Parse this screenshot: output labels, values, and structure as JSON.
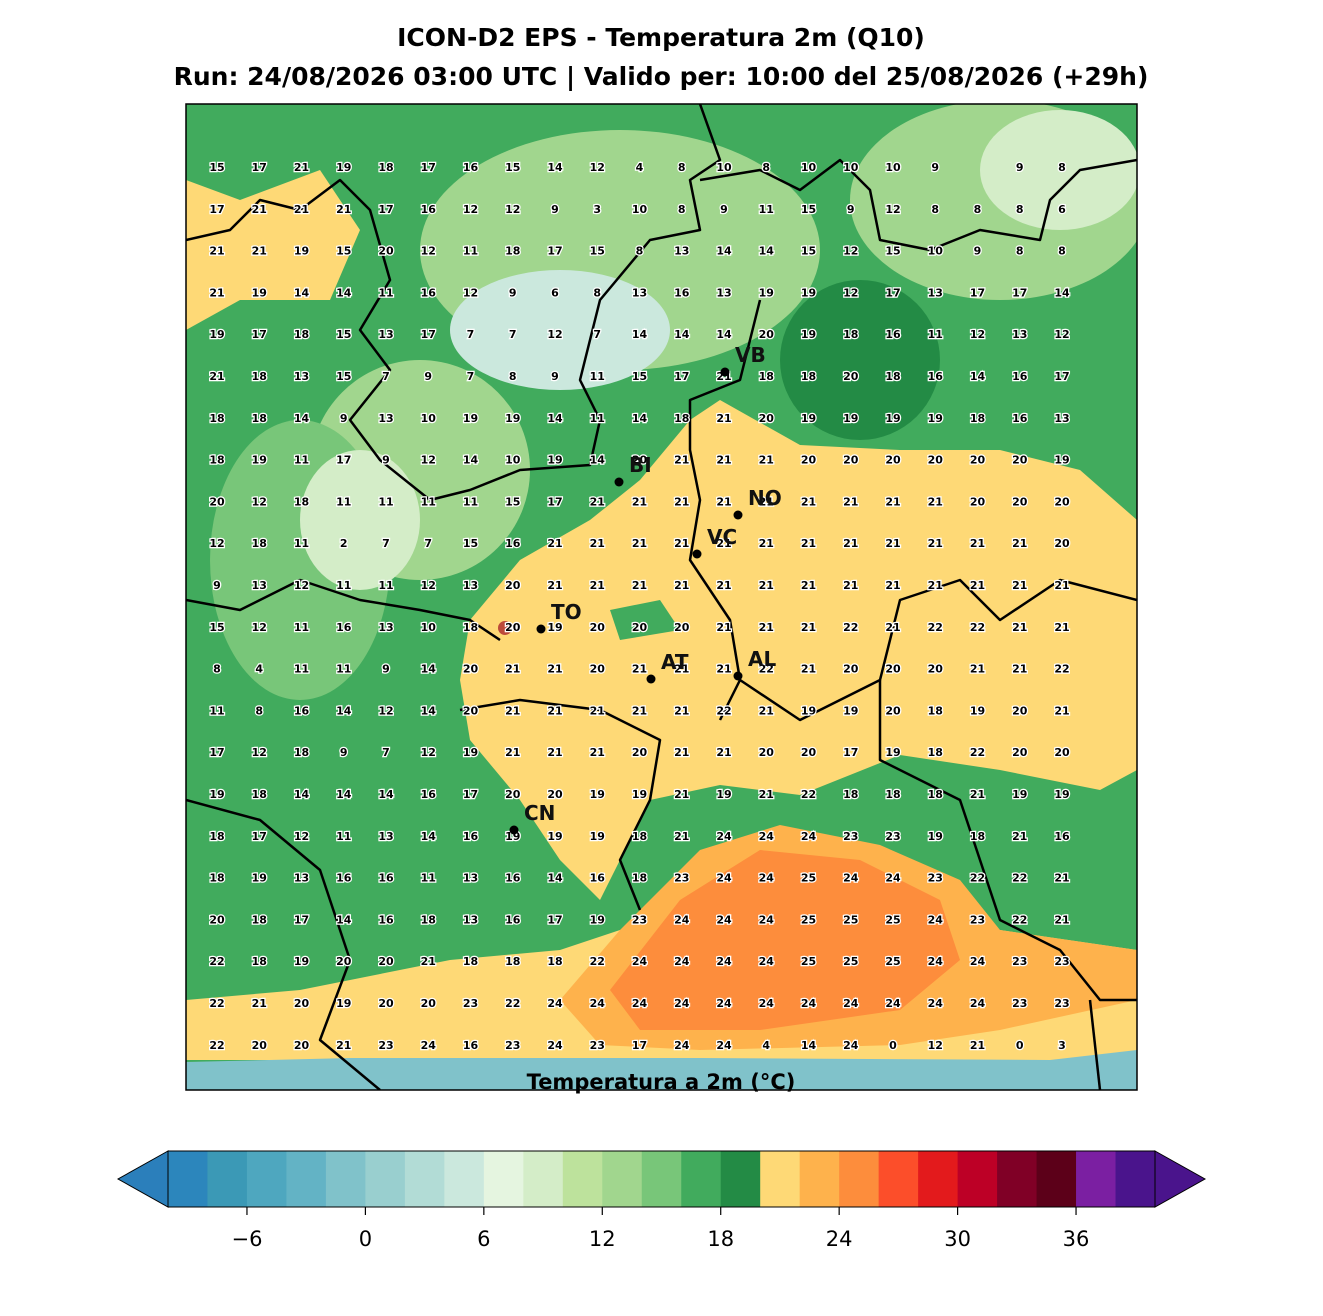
{
  "title": "ICON-D2 EPS - Temperatura 2m (Q10)",
  "subtitle": "Run: 24/08/2026 03:00 UTC | Valido per: 10:00 del 25/08/2026 (+29h)",
  "grid": {
    "rows": [
      [
        15,
        17,
        21,
        19,
        18,
        17,
        16,
        15,
        14,
        12,
        4,
        8,
        10,
        8,
        10,
        10,
        10,
        9,
        null,
        9,
        8
      ],
      [
        17,
        21,
        21,
        21,
        17,
        16,
        12,
        12,
        9,
        3,
        10,
        8,
        9,
        11,
        15,
        9,
        12,
        8,
        8,
        8,
        6
      ],
      [
        21,
        21,
        19,
        15,
        20,
        12,
        11,
        18,
        17,
        15,
        8,
        13,
        14,
        14,
        15,
        12,
        15,
        10,
        9,
        8,
        8
      ],
      [
        21,
        19,
        14,
        14,
        11,
        16,
        12,
        9,
        6,
        8,
        13,
        16,
        13,
        19,
        19,
        12,
        17,
        13,
        17,
        17,
        14
      ],
      [
        19,
        17,
        18,
        15,
        13,
        17,
        7,
        7,
        12,
        7,
        14,
        14,
        14,
        20,
        19,
        18,
        16,
        11,
        12,
        13,
        12
      ],
      [
        21,
        18,
        13,
        15,
        7,
        9,
        7,
        8,
        9,
        11,
        15,
        17,
        21,
        18,
        18,
        20,
        18,
        16,
        14,
        16,
        17
      ],
      [
        18,
        18,
        14,
        9,
        13,
        10,
        19,
        19,
        14,
        11,
        14,
        18,
        21,
        20,
        19,
        19,
        19,
        19,
        18,
        16,
        13
      ],
      [
        18,
        19,
        11,
        17,
        9,
        12,
        14,
        10,
        19,
        14,
        20,
        21,
        21,
        21,
        20,
        20,
        20,
        20,
        20,
        20,
        19
      ],
      [
        20,
        12,
        18,
        11,
        11,
        11,
        11,
        15,
        17,
        21,
        21,
        21,
        21,
        21,
        21,
        21,
        21,
        21,
        20,
        20,
        20
      ],
      [
        12,
        18,
        11,
        2,
        7,
        7,
        15,
        16,
        21,
        21,
        21,
        21,
        21,
        21,
        21,
        21,
        21,
        21,
        21,
        21,
        20
      ],
      [
        9,
        13,
        12,
        11,
        11,
        12,
        13,
        20,
        21,
        21,
        21,
        21,
        21,
        21,
        21,
        21,
        21,
        21,
        21,
        21,
        21
      ],
      [
        15,
        12,
        11,
        16,
        13,
        10,
        18,
        20,
        19,
        20,
        20,
        20,
        21,
        21,
        21,
        22,
        21,
        22,
        22,
        21,
        21
      ],
      [
        8,
        4,
        11,
        11,
        9,
        14,
        20,
        21,
        21,
        20,
        21,
        21,
        21,
        22,
        21,
        20,
        20,
        20,
        21,
        21,
        22
      ],
      [
        11,
        8,
        16,
        14,
        12,
        14,
        20,
        21,
        21,
        21,
        21,
        21,
        22,
        21,
        19,
        19,
        20,
        18,
        19,
        20,
        21
      ],
      [
        17,
        12,
        18,
        9,
        7,
        12,
        19,
        21,
        21,
        21,
        20,
        21,
        21,
        20,
        20,
        17,
        19,
        18,
        22,
        20,
        20
      ],
      [
        19,
        18,
        14,
        14,
        14,
        16,
        17,
        20,
        20,
        19,
        19,
        21,
        19,
        21,
        22,
        18,
        18,
        18,
        21,
        19,
        19
      ],
      [
        18,
        17,
        12,
        11,
        13,
        14,
        16,
        19,
        19,
        19,
        18,
        21,
        24,
        24,
        24,
        23,
        23,
        19,
        18,
        21,
        16
      ],
      [
        18,
        19,
        13,
        16,
        16,
        11,
        13,
        16,
        14,
        16,
        18,
        23,
        24,
        24,
        25,
        24,
        24,
        23,
        22,
        22,
        21
      ],
      [
        20,
        18,
        17,
        14,
        16,
        18,
        13,
        16,
        17,
        19,
        23,
        24,
        24,
        24,
        25,
        25,
        25,
        24,
        23,
        22,
        21
      ],
      [
        22,
        18,
        19,
        20,
        20,
        21,
        18,
        18,
        18,
        22,
        24,
        24,
        24,
        24,
        25,
        25,
        25,
        24,
        24,
        23,
        23
      ],
      [
        22,
        21,
        20,
        19,
        20,
        20,
        23,
        22,
        24,
        24,
        24,
        24,
        24,
        24,
        24,
        24,
        24,
        24,
        24,
        23,
        23
      ],
      [
        22,
        20,
        20,
        21,
        23,
        24,
        16,
        23,
        24,
        23,
        17,
        24,
        24,
        4,
        14,
        24,
        0,
        12,
        21,
        0,
        3
      ]
    ]
  },
  "cities": [
    {
      "label": "VB"
    },
    {
      "label": "BI"
    },
    {
      "label": "NO"
    },
    {
      "label": "VC"
    },
    {
      "label": "TO"
    },
    {
      "label": "AT"
    },
    {
      "label": "AL"
    },
    {
      "label": "CN"
    }
  ],
  "colorbar": {
    "label": "Temperatura a 2m (°C)",
    "lim": [
      -10,
      40
    ],
    "ticks": [
      {
        "value": -6,
        "label": "−6"
      },
      0,
      6,
      12,
      18,
      24,
      30,
      36
    ],
    "under_color": "#2b7fbb",
    "over_color": "#4a148c",
    "colors": [
      "#2c86bc",
      "#3b99b6",
      "#4ea7bf",
      "#63b3c5",
      "#80c2ca",
      "#99cfcf",
      "#b2dcd6",
      "#cbe8dd",
      "#e5f5e0",
      "#d4edc8",
      "#bde29c",
      "#a1d68e",
      "#78c679",
      "#41ab5d",
      "#238b45",
      "#fed976",
      "#feb24c",
      "#fd8d3c",
      "#fc4e2a",
      "#e31a1c",
      "#bd0026",
      "#800026",
      "#5c0019",
      "#7b1fa2",
      "#4a148c"
    ]
  }
}
